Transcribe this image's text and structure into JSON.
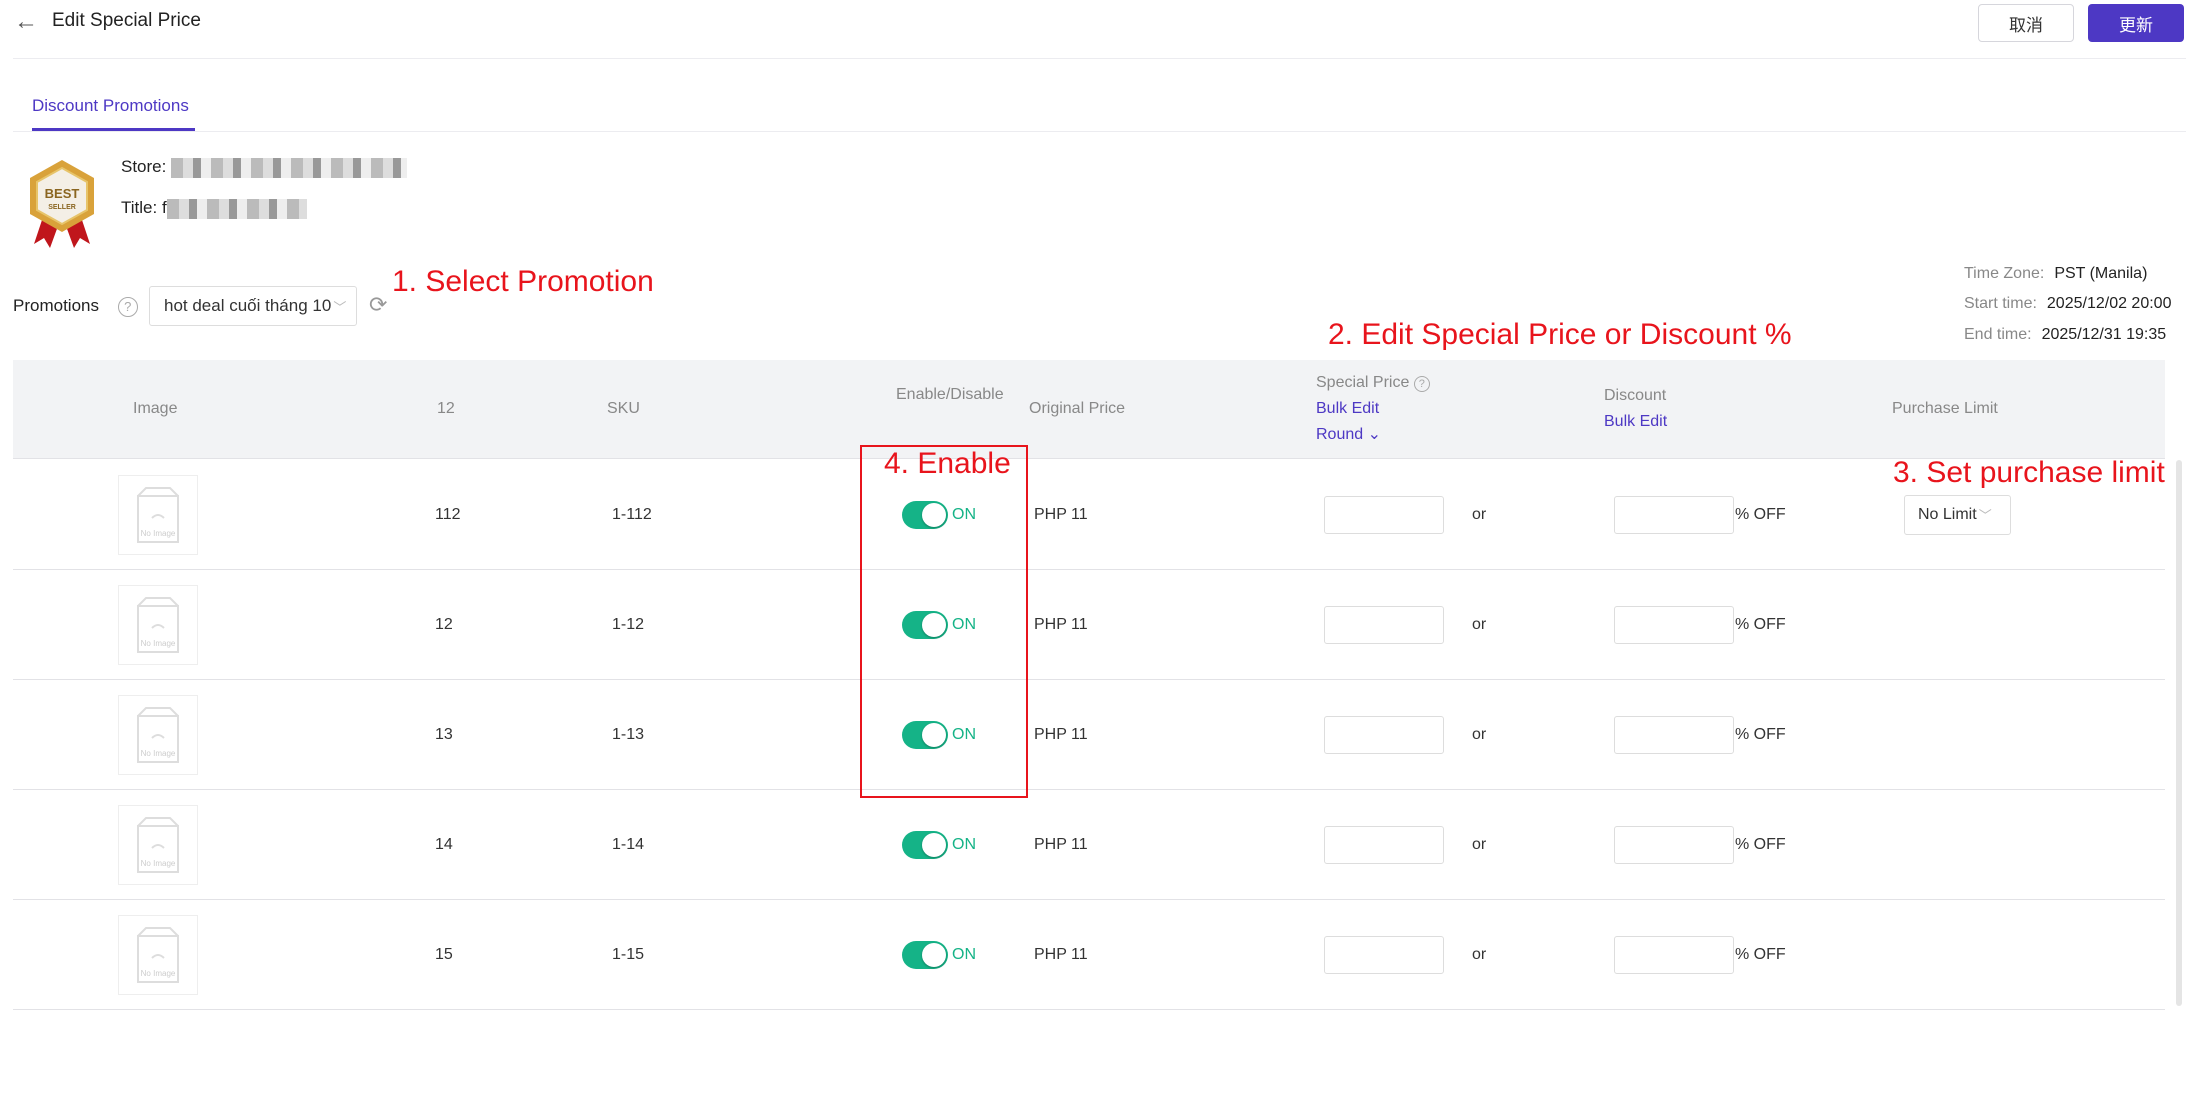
{
  "header": {
    "title": "Edit Special Price",
    "cancel": "取消",
    "update": "更新"
  },
  "tabs": [
    {
      "label": "Discount Promotions",
      "active": true
    }
  ],
  "product": {
    "store_label": "Store:",
    "title_label": "Title:",
    "title_prefix": "f",
    "badge_top": "BEST",
    "badge_bottom": "SELLER"
  },
  "promotions": {
    "label": "Promotions",
    "help": "?",
    "selected": "hot deal cuối tháng 10"
  },
  "time": {
    "zone_label": "Time Zone:",
    "zone": "PST (Manila)",
    "start_label": "Start time:",
    "start": "2025/12/02 20:00",
    "end_label": "End time:",
    "end": "2025/12/31 19:35"
  },
  "annotations": {
    "a1": "1. Select Promotion",
    "a2": "2. Edit Special Price or Discount %",
    "a3": "3. Set purchase limit",
    "a4": "4. Enable"
  },
  "table": {
    "headers": {
      "image": "Image",
      "col2": "12",
      "sku": "SKU",
      "enable": "Enable/Disable",
      "original": "Original Price",
      "special": "Special Price",
      "special_bulk": "Bulk Edit",
      "round": "Round",
      "discount": "Discount",
      "discount_bulk": "Bulk Edit",
      "limit": "Purchase Limit"
    },
    "no_image": "No Image",
    "or": "or",
    "off": "% OFF",
    "rows": [
      {
        "name": "112",
        "sku": "1-112",
        "status": "ON",
        "price": "PHP 11",
        "limit": "No Limit"
      },
      {
        "name": "12",
        "sku": "1-12",
        "status": "ON",
        "price": "PHP 11"
      },
      {
        "name": "13",
        "sku": "1-13",
        "status": "ON",
        "price": "PHP 11"
      },
      {
        "name": "14",
        "sku": "1-14",
        "status": "ON",
        "price": "PHP 11"
      },
      {
        "name": "15",
        "sku": "1-15",
        "status": "ON",
        "price": "PHP 11"
      }
    ]
  },
  "colors": {
    "accent": "#4d38c4",
    "toggle_on": "#15b387",
    "annotation": "#e8141c"
  }
}
